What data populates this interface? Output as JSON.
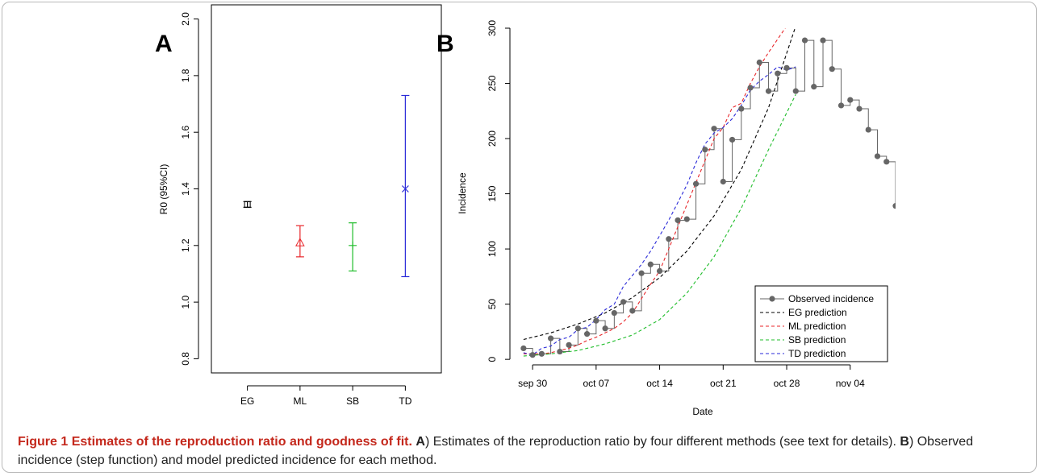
{
  "caption": {
    "figure_label": "Figure 1",
    "title": "Estimates of the reproduction ratio and goodness of fit.",
    "part_a_label": "A",
    "part_a_text": ") Estimates of the reproduction ratio by four different methods (see text for details).",
    "part_b_label": "B",
    "part_b_text": ") Observed incidence (step function) and model predicted incidence for each method."
  },
  "chart_data": [
    {
      "panel": "A",
      "type": "scatter",
      "title": "",
      "xlabel": "",
      "ylabel": "R0 (95%CI)",
      "categories": [
        "EG",
        "ML",
        "SB",
        "TD"
      ],
      "ylim": [
        0.75,
        2.05
      ],
      "yticks": [
        "0.8",
        "1.0",
        "1.2",
        "1.4",
        "1.6",
        "1.8",
        "2.0"
      ],
      "points": [
        {
          "method": "EG",
          "estimate": 1.345,
          "lower": 1.335,
          "upper": 1.355,
          "color": "#000000",
          "marker": "square"
        },
        {
          "method": "ML",
          "estimate": 1.21,
          "lower": 1.16,
          "upper": 1.27,
          "color": "#e8262a",
          "marker": "triangle"
        },
        {
          "method": "SB",
          "estimate": 1.2,
          "lower": 1.11,
          "upper": 1.28,
          "color": "#1fbd2a",
          "marker": "plus"
        },
        {
          "method": "TD",
          "estimate": 1.4,
          "lower": 1.09,
          "upper": 1.73,
          "color": "#2a2ad8",
          "marker": "cross"
        }
      ]
    },
    {
      "panel": "B",
      "type": "line",
      "title": "",
      "xlabel": "Date",
      "ylabel": "Incidence",
      "xlim": [
        -0.5,
        42
      ],
      "ylim": [
        -5,
        300
      ],
      "xticks": [
        {
          "x": 2,
          "label": "sep 30"
        },
        {
          "x": 9,
          "label": "oct 07"
        },
        {
          "x": 16,
          "label": "oct 14"
        },
        {
          "x": 23,
          "label": "oct 21"
        },
        {
          "x": 30,
          "label": "oct 28"
        },
        {
          "x": 37,
          "label": "nov 04"
        }
      ],
      "yticks": [
        "0",
        "50",
        "100",
        "150",
        "200",
        "250",
        "300"
      ],
      "observed": {
        "name": "Observed incidence",
        "color": "#666666",
        "x": [
          1,
          2,
          3,
          4,
          5,
          6,
          7,
          8,
          9,
          10,
          11,
          12,
          13,
          14,
          15,
          16,
          17,
          18,
          19,
          20,
          21,
          22,
          23,
          24,
          25,
          26,
          27,
          28,
          29,
          30,
          31,
          32,
          33,
          34,
          35,
          36,
          37,
          38,
          39,
          40,
          41,
          42
        ],
        "y": [
          10,
          4,
          5,
          19,
          7,
          13,
          28,
          23,
          35,
          28,
          42,
          52,
          44,
          78,
          86,
          80,
          109,
          126,
          127,
          159,
          190,
          209,
          161,
          199,
          227,
          246,
          269,
          243,
          259,
          264,
          243,
          289,
          247,
          289,
          263,
          230,
          235,
          227,
          208,
          184,
          179,
          139
        ]
      },
      "predictions": [
        {
          "name": "EG prediction",
          "color": "#000000",
          "x": [
            1,
            4,
            7,
            10,
            13,
            16,
            19,
            22,
            25,
            28,
            31
          ],
          "y": [
            18,
            24,
            32,
            42,
            56,
            74,
            98,
            130,
            172,
            228,
            302
          ]
        },
        {
          "name": "ML prediction",
          "color": "#e8262a",
          "x": [
            1,
            2,
            3,
            4,
            5,
            6,
            7,
            8,
            9,
            10,
            11,
            12,
            13,
            14,
            15,
            16,
            17,
            18,
            19,
            20,
            21,
            22,
            23,
            24,
            25,
            26,
            27,
            28,
            29,
            30
          ],
          "y": [
            5,
            5,
            5,
            6,
            8,
            10,
            13,
            17,
            20,
            24,
            28,
            34,
            42,
            55,
            68,
            80,
            100,
            120,
            140,
            160,
            180,
            200,
            210,
            228,
            232,
            250,
            265,
            278,
            290,
            302
          ]
        },
        {
          "name": "SB prediction",
          "color": "#1fbd2a",
          "x": [
            1,
            4,
            7,
            10,
            13,
            16,
            19,
            22,
            25,
            28,
            31
          ],
          "y": [
            3,
            5,
            8,
            14,
            22,
            36,
            60,
            93,
            137,
            190,
            240
          ]
        },
        {
          "name": "TD prediction",
          "color": "#2a2ad8",
          "x": [
            1,
            2,
            3,
            4,
            5,
            6,
            7,
            8,
            9,
            10,
            11,
            12,
            13,
            14,
            15,
            16,
            17,
            18,
            19,
            20,
            21,
            22,
            23,
            24,
            25,
            26,
            27,
            28,
            29,
            30,
            31
          ],
          "y": [
            6,
            4,
            10,
            12,
            18,
            20,
            27,
            29,
            36,
            45,
            50,
            66,
            76,
            86,
            98,
            112,
            126,
            142,
            158,
            178,
            195,
            205,
            210,
            218,
            230,
            244,
            252,
            258,
            265,
            262,
            265
          ]
        }
      ],
      "legend_position": "bottom-right"
    }
  ]
}
